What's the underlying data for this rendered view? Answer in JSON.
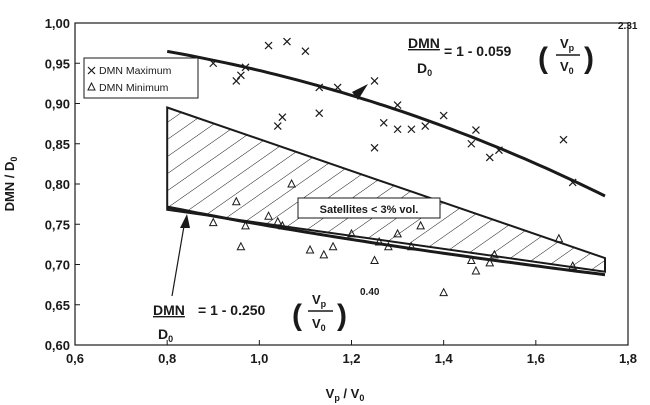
{
  "chart_data": {
    "type": "scatter",
    "xlabel": {
      "main": "V",
      "sub1": "p",
      "mid": " / V",
      "sub2": "0"
    },
    "ylabel": {
      "main": "DMN / D",
      "sub": "0"
    },
    "xlim": [
      0.6,
      1.8
    ],
    "ylim": [
      0.6,
      1.0
    ],
    "xticks": [
      "0,6",
      "0,8",
      "1,0",
      "1,2",
      "1,4",
      "1,6",
      "1,8"
    ],
    "xtick_values": [
      0.6,
      0.8,
      1.0,
      1.2,
      1.4,
      1.6,
      1.8
    ],
    "yticks": [
      "0,60",
      "0,65",
      "0,70",
      "0,75",
      "0,80",
      "0,85",
      "0,90",
      "0,95",
      "1,00"
    ],
    "ytick_values": [
      0.6,
      0.65,
      0.7,
      0.75,
      0.8,
      0.85,
      0.9,
      0.95,
      1.0
    ],
    "grid": false,
    "legend": {
      "position": "top-left",
      "entries": [
        "DMN Maximum",
        "DMN Minimum"
      ]
    },
    "series": [
      {
        "name": "DMN Maximum",
        "marker": "x",
        "points": [
          [
            0.9,
            0.95
          ],
          [
            0.95,
            0.928
          ],
          [
            0.96,
            0.935
          ],
          [
            0.97,
            0.945
          ],
          [
            1.02,
            0.972
          ],
          [
            1.04,
            0.872
          ],
          [
            1.05,
            0.883
          ],
          [
            1.06,
            0.977
          ],
          [
            1.1,
            0.965
          ],
          [
            1.13,
            0.888
          ],
          [
            1.13,
            0.92
          ],
          [
            1.17,
            0.92
          ],
          [
            1.25,
            0.928
          ],
          [
            1.25,
            0.845
          ],
          [
            1.27,
            0.876
          ],
          [
            1.3,
            0.898
          ],
          [
            1.3,
            0.868
          ],
          [
            1.33,
            0.868
          ],
          [
            1.36,
            0.872
          ],
          [
            1.4,
            0.885
          ],
          [
            1.46,
            0.85
          ],
          [
            1.47,
            0.867
          ],
          [
            1.5,
            0.833
          ],
          [
            1.52,
            0.842
          ],
          [
            1.66,
            0.855
          ],
          [
            1.68,
            0.802
          ]
        ]
      },
      {
        "name": "DMN Minimum",
        "marker": "triangle",
        "points": [
          [
            0.9,
            0.752
          ],
          [
            0.95,
            0.778
          ],
          [
            0.96,
            0.722
          ],
          [
            0.97,
            0.748
          ],
          [
            1.02,
            0.76
          ],
          [
            1.04,
            0.753
          ],
          [
            1.05,
            0.748
          ],
          [
            1.07,
            0.8
          ],
          [
            1.11,
            0.718
          ],
          [
            1.14,
            0.712
          ],
          [
            1.16,
            0.722
          ],
          [
            1.2,
            0.738
          ],
          [
            1.25,
            0.705
          ],
          [
            1.26,
            0.728
          ],
          [
            1.28,
            0.722
          ],
          [
            1.3,
            0.738
          ],
          [
            1.33,
            0.722
          ],
          [
            1.35,
            0.748
          ],
          [
            1.4,
            0.665
          ],
          [
            1.46,
            0.705
          ],
          [
            1.47,
            0.692
          ],
          [
            1.5,
            0.702
          ],
          [
            1.51,
            0.712
          ],
          [
            1.65,
            0.732
          ],
          [
            1.68,
            0.698
          ]
        ]
      }
    ],
    "fit_curves": [
      {
        "name": "max",
        "coef": 0.059,
        "exp": 2.31,
        "xrange": [
          0.8,
          1.75
        ]
      },
      {
        "name": "min",
        "coef": 0.25,
        "exp": 0.4,
        "xrange": [
          0.8,
          1.75
        ]
      }
    ],
    "band": {
      "label": "Satellites < 3% vol.",
      "vertices": [
        [
          0.8,
          0.895
        ],
        [
          1.75,
          0.708
        ],
        [
          1.75,
          0.691
        ],
        [
          0.8,
          0.768
        ]
      ]
    },
    "annotations": {
      "eq_max": {
        "lhs_num": "DMN",
        "lhs_den": "D",
        "lhs_den_sub": "0",
        "text": "= 1 - 0.059",
        "frac_num": "V",
        "frac_num_sub": "p",
        "frac_den": "V",
        "frac_den_sub": "0",
        "exponent": "2.31"
      },
      "eq_min": {
        "lhs_num": "DMN",
        "lhs_den": "D",
        "lhs_den_sub": "0",
        "text": "= 1 - 0.250",
        "frac_num": "V",
        "frac_num_sub": "p",
        "frac_den": "V",
        "frac_den_sub": "0",
        "exponent": "0.40"
      }
    }
  }
}
